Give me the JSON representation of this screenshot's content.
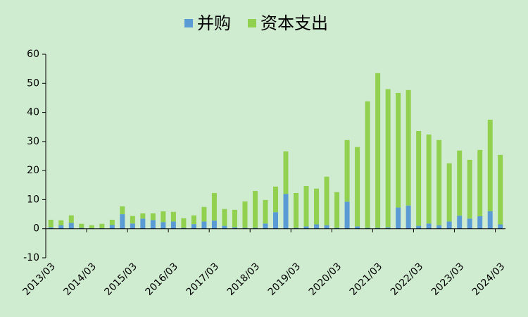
{
  "chart_data": {
    "type": "stacked_bar",
    "categories": [
      "2013/03",
      null,
      null,
      null,
      "2014/03",
      null,
      null,
      null,
      "2015/03",
      null,
      null,
      null,
      "2016/03",
      null,
      null,
      null,
      "2017/03",
      null,
      null,
      null,
      "2018/03",
      null,
      null,
      null,
      "2019/03",
      null,
      null,
      null,
      "2020/03",
      null,
      null,
      null,
      "2021/03",
      null,
      null,
      null,
      "2022/03",
      null,
      null,
      null,
      "2023/03",
      null,
      null,
      null,
      "2024/03"
    ],
    "series": [
      {
        "name": "并购",
        "color": "#5b9bd5",
        "values": [
          0.5,
          1.2,
          2.0,
          0.3,
          0.2,
          0.2,
          1.3,
          5.0,
          1.8,
          3.5,
          3.0,
          2.3,
          2.5,
          0.3,
          1.6,
          2.5,
          2.8,
          1.0,
          0.5,
          0.3,
          0.3,
          1.8,
          5.7,
          12.0,
          0.3,
          0.8,
          1.5,
          1.2,
          0.3,
          9.3,
          0.8,
          0.3,
          0.3,
          0.5,
          7.3,
          8.0,
          1.0,
          1.8,
          1.2,
          2.5,
          4.5,
          3.5,
          4.3,
          6.0,
          1.5
        ]
      },
      {
        "name": "资本支出",
        "color": "#92d050",
        "values": [
          2.6,
          1.7,
          2.6,
          1.4,
          1.0,
          1.5,
          1.8,
          2.7,
          2.6,
          1.8,
          2.3,
          3.7,
          3.3,
          3.3,
          3.0,
          5.0,
          9.5,
          5.8,
          6.0,
          9.1,
          12.7,
          8.1,
          8.8,
          14.6,
          12.0,
          13.9,
          12.3,
          16.7,
          12.3,
          21.2,
          27.3,
          43.5,
          53.2,
          47.5,
          39.4,
          39.7,
          32.6,
          30.6,
          29.3,
          20.0,
          22.4,
          20.2,
          22.8,
          31.5,
          23.9
        ]
      }
    ],
    "ylim": [
      -10,
      60
    ],
    "yticks": [
      -10,
      0,
      10,
      20,
      30,
      40,
      50,
      60
    ],
    "legend": "top"
  }
}
